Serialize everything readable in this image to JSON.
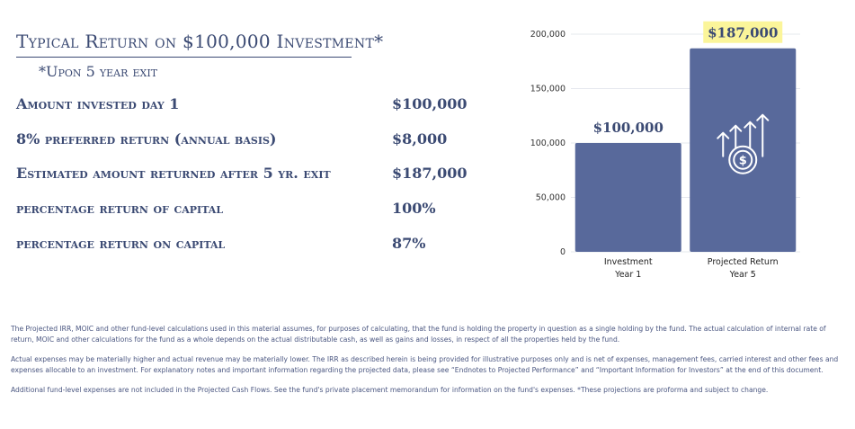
{
  "header": {
    "title": "Typical Return on $100,000 Investment*",
    "subtitle": "*Upon 5 year exit"
  },
  "rows": [
    {
      "label": "Amount invested day 1",
      "value": "$100,000"
    },
    {
      "label": "8% preferred return (annual basis)",
      "value": "$8,000"
    },
    {
      "label": "Estimated amount returned after 5 yr. exit",
      "value": "$187,000"
    },
    {
      "label": "percentage return of capital",
      "value": "100%"
    },
    {
      "label": "percentage return on capital",
      "value": "87%"
    }
  ],
  "chart_data": {
    "type": "bar",
    "categories": [
      {
        "line1": "Investment",
        "line2": "Year 1"
      },
      {
        "line1": "Projected Return",
        "line2": "Year 5"
      }
    ],
    "values": [
      100000,
      187000
    ],
    "data_labels": [
      "$100,000",
      "$187,000"
    ],
    "highlight_label_index": 1,
    "yticks": [
      "200,000",
      "150,000",
      "100,000",
      "50,000",
      "0"
    ],
    "ytick_values": [
      200000,
      150000,
      100000,
      50000,
      0
    ],
    "ylim": [
      0,
      200000
    ],
    "grid": true,
    "icon": "money-growth-icon",
    "colors": {
      "bar": "#58699b",
      "highlight": "#fbf59a",
      "label": "#3b4a73"
    }
  },
  "footnotes": [
    "The Projected IRR, MOIC and other fund-level calculations used in this material assumes, for purposes of calculating, that the fund is holding the property in question as a single holding by the fund. The actual calculation of internal rate of return, MOIC and other calculations for the fund as a whole depends on the actual distributable cash, as well as gains and losses, in respect of all the properties held by the fund.",
    "Actual expenses may be materially higher and actual revenue may be materially lower. The IRR as described herein is being provided for illustrative purposes only and is net of expenses, management fees, carried interest and other fees and expenses allocable to an investment. For explanatory notes and important information regarding the projected data, please see “Endnotes to Projected Performance” and “Important Information for Investors” at the end of this document.",
    "Additional fund-level expenses are not included in the Projected Cash Flows. See the fund's private placement memorandum for information on the fund's expenses. *These projections are proforma and subject to change."
  ]
}
